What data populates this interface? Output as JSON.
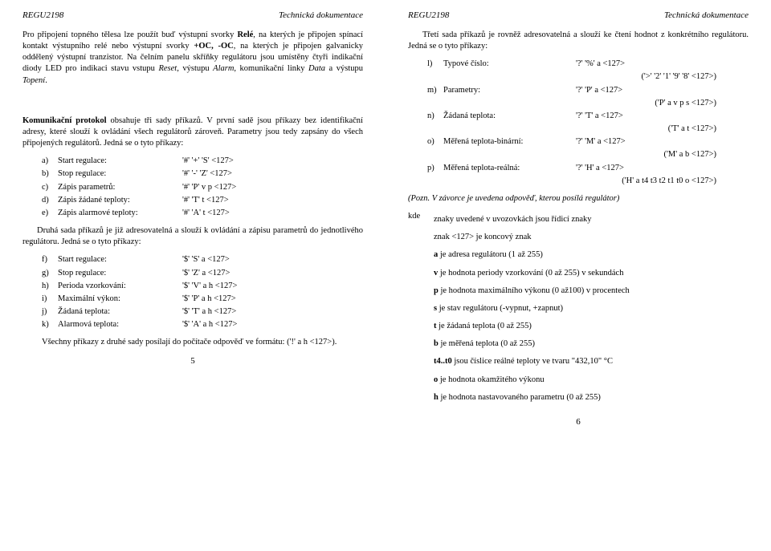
{
  "header": {
    "left": "REGU2198",
    "right": "Technická dokumentace"
  },
  "left_page": {
    "p1_a": "Pro připojení topného tělesa lze použít buď výstupní svorky ",
    "p1_b": "Relé",
    "p1_c": ", na kterých je připojen spínací kontakt výstupního relé nebo výstupní svorky ",
    "p1_d": "+OC, -OC",
    "p1_e": ", na kterých je připojen galvanicky oddělený výstupní tranzistor. Na čelním panelu skříňky regulátoru jsou umístěny čtyři indikační diody LED pro indikaci stavu vstupu ",
    "p1_f": "Reset",
    "p1_g": ", výstupu ",
    "p1_h": "Alarm",
    "p1_i": ", komunikační linky ",
    "p1_j": "Data",
    "p1_k": " a výstupu ",
    "p1_l": "Topení",
    "p1_m": ".",
    "p2_a": "Komunikační protokol",
    "p2_b": " obsahuje tři sady příkazů. V první sadě jsou příkazy bez identifikační adresy, které slouží k ovládání všech regulátorů zároveň. Parametry jsou tedy zapsány do všech připojených regulátorů. Jedná se o tyto příkazy:",
    "cmds1": [
      {
        "l": "a)",
        "label": "Start regulace:",
        "code": "'#' '+' 'S' <127>"
      },
      {
        "l": "b)",
        "label": "Stop regulace:",
        "code": "'#' '-' 'Z' <127>"
      },
      {
        "l": "c)",
        "label": "Zápis parametrů:",
        "code": "'#' 'P' v p <127>"
      },
      {
        "l": "d)",
        "label": "Zápis žádané teploty:",
        "code": "'#' 'T' t <127>"
      },
      {
        "l": "e)",
        "label": "Zápis alarmové teploty:",
        "code": "'#' 'A' t <127>"
      }
    ],
    "p3": "Druhá sada příkazů je již adresovatelná a slouží k ovládání a zápisu parametrů do jednotlivého regulátoru. Jedná se o tyto příkazy:",
    "cmds2": [
      {
        "l": "f)",
        "label": "Start regulace:",
        "code": "'$' 'S' a  <127>"
      },
      {
        "l": "g)",
        "label": "Stop regulace:",
        "code": "'$' 'Z' a  <127>"
      },
      {
        "l": "h)",
        "label": "Perioda vzorkování:",
        "code": "'$' 'V' a h  <127>"
      },
      {
        "l": "i)",
        "label": "Maximální výkon:",
        "code": "'$' 'P' a h  <127>"
      },
      {
        "l": "j)",
        "label": "Žádaná teplota:",
        "code": "'$' 'T' a h  <127>"
      },
      {
        "l": "k)",
        "label": "Alarmová teplota:",
        "code": "'$' 'A' a h  <127>"
      }
    ],
    "p4": "Všechny příkazy z druhé sady posílají do počítače odpověď ve formátu: ('!' a h <127>).",
    "pagenum": "5"
  },
  "right_page": {
    "p1": "Třetí sada příkazů je rovněž adresovatelná a slouží ke čtení hodnot z konkrétního regulátoru. Jedná se o tyto příkazy:",
    "rows": [
      {
        "l": "l)",
        "label": "Typové číslo:",
        "code": "'?' '%' a  <127>",
        "resp": "('>' '2' '1' '9' '8' <127>)"
      },
      {
        "l": "m)",
        "label": "Parametry:",
        "code": "'?' 'P' a  <127>",
        "resp": "('P' a v p s  <127>)"
      },
      {
        "l": "n)",
        "label": "Žádaná teplota:",
        "code": "'?' 'T' a  <127>",
        "resp": "('T' a t  <127>)"
      },
      {
        "l": "o)",
        "label": "Měřená teplota-binární:",
        "code": "'?' 'M' a  <127>",
        "resp": "('M' a b  <127>)"
      },
      {
        "l": "p)",
        "label": "Měřená teplota-reálná:",
        "code": "'?' 'H' a  <127>",
        "resp": "('H' a t4 t3 t2 t1 t0 o  <127>)"
      }
    ],
    "note": "(Pozn. V závorce je uvedena odpověď, kterou posílá regulátor)",
    "kde_label": "kde",
    "kde_lines": [
      "znaky uvedené v uvozovkách jsou řídicí znaky",
      "znak <127> je koncový znak",
      {
        "b": "a",
        "t": " je adresa regulátoru (1 až 255)"
      },
      {
        "b": "v",
        "t": " je hodnota periody vzorkování (0 až 255) v sekundách"
      },
      {
        "b": "p",
        "t": " je hodnota maximálního výkonu (0 až100) v procentech"
      },
      {
        "b": "s",
        "t": " je stav regulátoru (-vypnut, +zapnut)"
      },
      {
        "b": "t",
        "t": " je žádaná teplota  (0 až 255)"
      },
      {
        "b": "b",
        "t": " je měřená teplota (0 až 255)"
      },
      {
        "b": "t4..t0",
        "t": " jsou číslice reálné teploty ve tvaru \"432,10\" °C"
      },
      {
        "b": "o",
        "t": " je hodnota okamžitého výkonu"
      },
      {
        "b": "h",
        "t": " je hodnota nastavovaného parametru (0 až 255)"
      }
    ],
    "pagenum": "6"
  }
}
